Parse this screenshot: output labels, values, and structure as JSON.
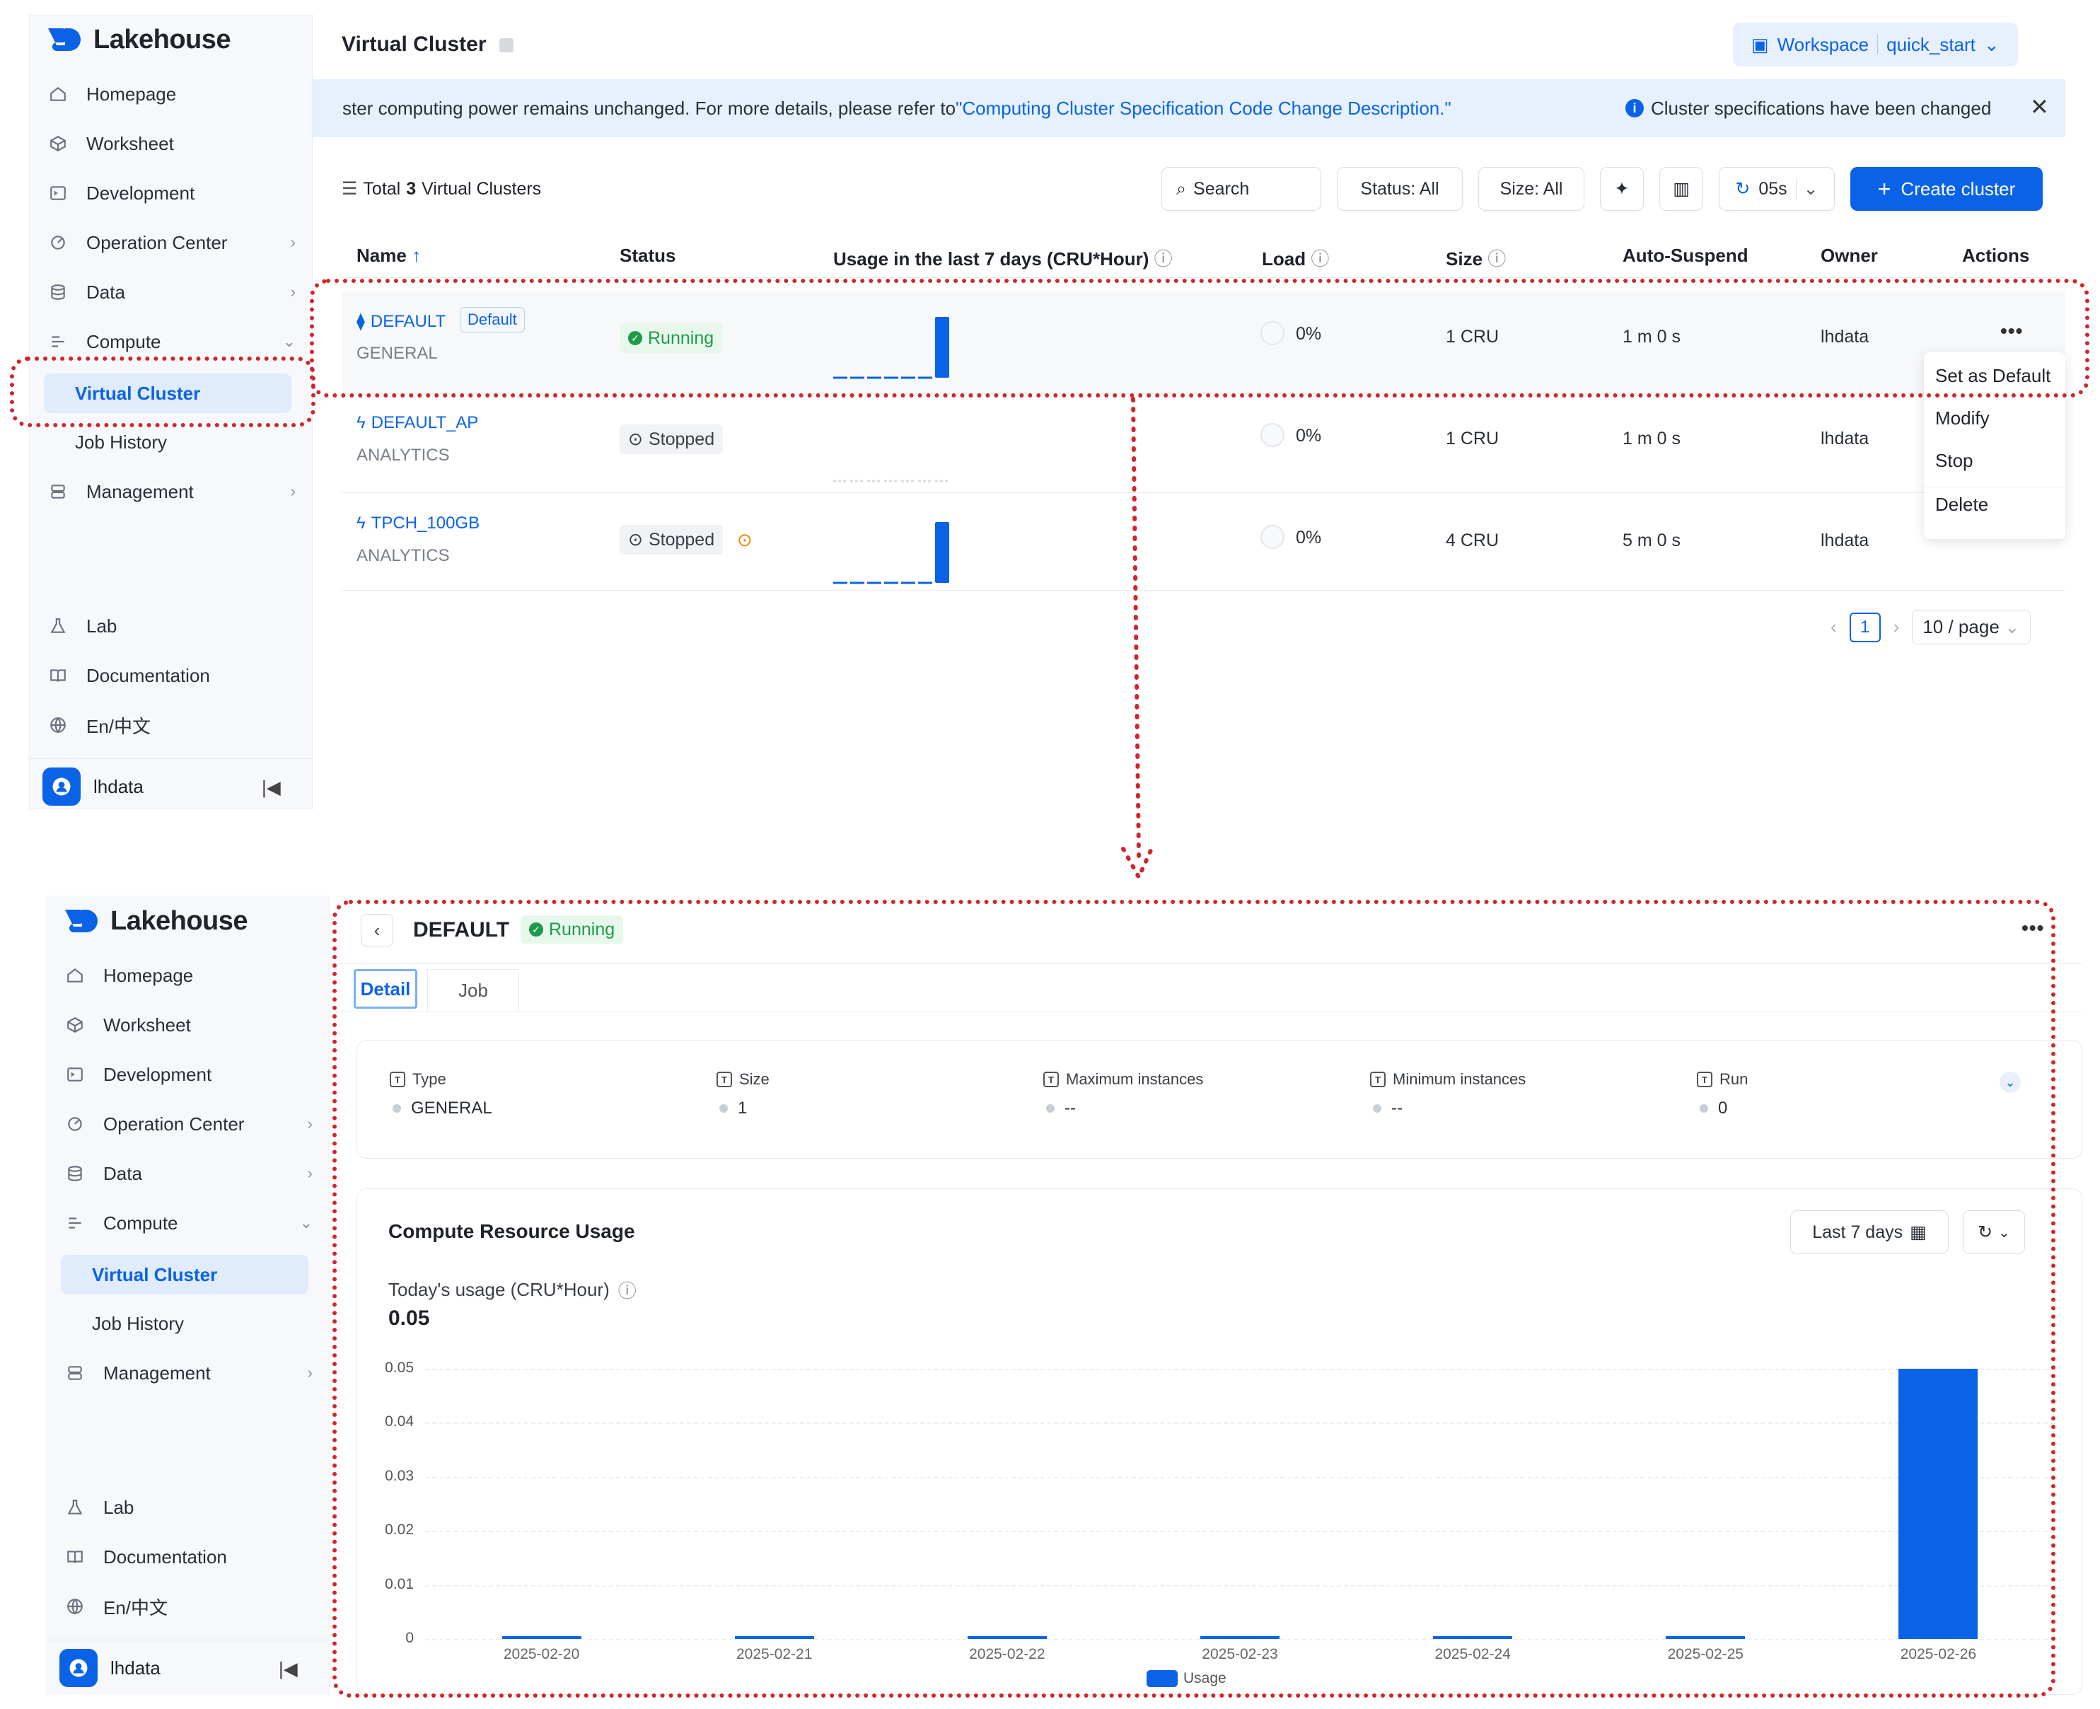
{
  "app": {
    "name": "Lakehouse"
  },
  "sidebar": {
    "items": [
      {
        "label": "Homepage",
        "icon": "home-icon"
      },
      {
        "label": "Worksheet",
        "icon": "cube-icon"
      },
      {
        "label": "Development",
        "icon": "terminal-icon"
      },
      {
        "label": "Operation Center",
        "icon": "ops-icon",
        "chevron": "›"
      },
      {
        "label": "Data",
        "icon": "database-icon",
        "chevron": "›"
      },
      {
        "label": "Compute",
        "icon": "compute-icon",
        "chevron": "⌄"
      }
    ],
    "compute_sub": {
      "active": "Virtual Cluster",
      "other": "Job History"
    },
    "management": {
      "label": "Management",
      "chevron": "›"
    },
    "bottom": [
      {
        "label": "Lab",
        "icon": "flask-icon"
      },
      {
        "label": "Documentation",
        "icon": "book-icon"
      },
      {
        "label": "En/中文",
        "icon": "globe-icon"
      }
    ],
    "user": "lhdata"
  },
  "list_page": {
    "title": "Virtual Cluster",
    "workspace": {
      "label": "Workspace",
      "value": "quick_start"
    },
    "banner": {
      "text": "ster computing power remains unchanged. For more details, please refer to",
      "link": "\"Computing Cluster Specification Code Change Description.\"",
      "notice": "Cluster specifications have been changed"
    },
    "summary": {
      "prefix": "Total",
      "count": "3",
      "suffix": "Virtual Clusters"
    },
    "toolbar": {
      "search": "Search",
      "status_filter": "Status: All",
      "size_filter": "Size: All",
      "refresh": "05s",
      "create": "Create cluster"
    },
    "columns": [
      "Name",
      "Status",
      "Usage in the last 7 days (CRU*Hour)",
      "Load",
      "Size",
      "Auto-Suspend",
      "Owner",
      "Actions"
    ],
    "rows": [
      {
        "name": "DEFAULT",
        "badge": "Default",
        "type": "GENERAL",
        "status": "Running",
        "usage": [
          0,
          0,
          0,
          0,
          0,
          0,
          0.05
        ],
        "load": "0%",
        "size": "1 CRU",
        "auto_suspend": "1 m 0 s",
        "owner": "lhdata"
      },
      {
        "name": "DEFAULT_AP",
        "type": "ANALYTICS",
        "status": "Stopped",
        "usage": [
          0,
          0,
          0,
          0,
          0,
          0,
          0
        ],
        "load": "0%",
        "size": "1 CRU",
        "auto_suspend": "1 m 0 s",
        "owner": "lhdata"
      },
      {
        "name": "TPCH_100GB",
        "type": "ANALYTICS",
        "status": "Stopped",
        "usage": [
          0,
          0,
          0,
          0,
          0,
          0,
          0.05
        ],
        "load": "0%",
        "size": "4 CRU",
        "auto_suspend": "5 m 0 s",
        "owner": "lhdata"
      }
    ],
    "actions_menu": [
      "Set as Default",
      "Modify",
      "Stop",
      "Delete"
    ],
    "pagination": {
      "current": "1",
      "page_size": "10 / page"
    }
  },
  "detail_page": {
    "name": "DEFAULT",
    "status": "Running",
    "tabs": [
      "Detail",
      "Job"
    ],
    "props": [
      {
        "label": "Type",
        "value": "GENERAL"
      },
      {
        "label": "Size",
        "value": "1"
      },
      {
        "label": "Maximum instances",
        "value": "--"
      },
      {
        "label": "Minimum instances",
        "value": "--"
      },
      {
        "label": "Run",
        "value": "0"
      }
    ],
    "usage_card": {
      "title": "Compute Resource Usage",
      "range": "Last 7 days",
      "today_label": "Today's usage (CRU*Hour)",
      "today_value": "0.05"
    }
  },
  "chart_data": {
    "type": "bar",
    "categories": [
      "2025-02-20",
      "2025-02-21",
      "2025-02-22",
      "2025-02-23",
      "2025-02-24",
      "2025-02-25",
      "2025-02-26"
    ],
    "series": [
      {
        "name": "Usage",
        "values": [
          0,
          0,
          0,
          0,
          0,
          0,
          0.05
        ]
      }
    ],
    "yticks": [
      "0",
      "0.01",
      "0.02",
      "0.03",
      "0.04",
      "0.05"
    ],
    "ylim": [
      0,
      0.05
    ],
    "grid": true,
    "legend": "bottom",
    "color": "#0a63e6"
  }
}
